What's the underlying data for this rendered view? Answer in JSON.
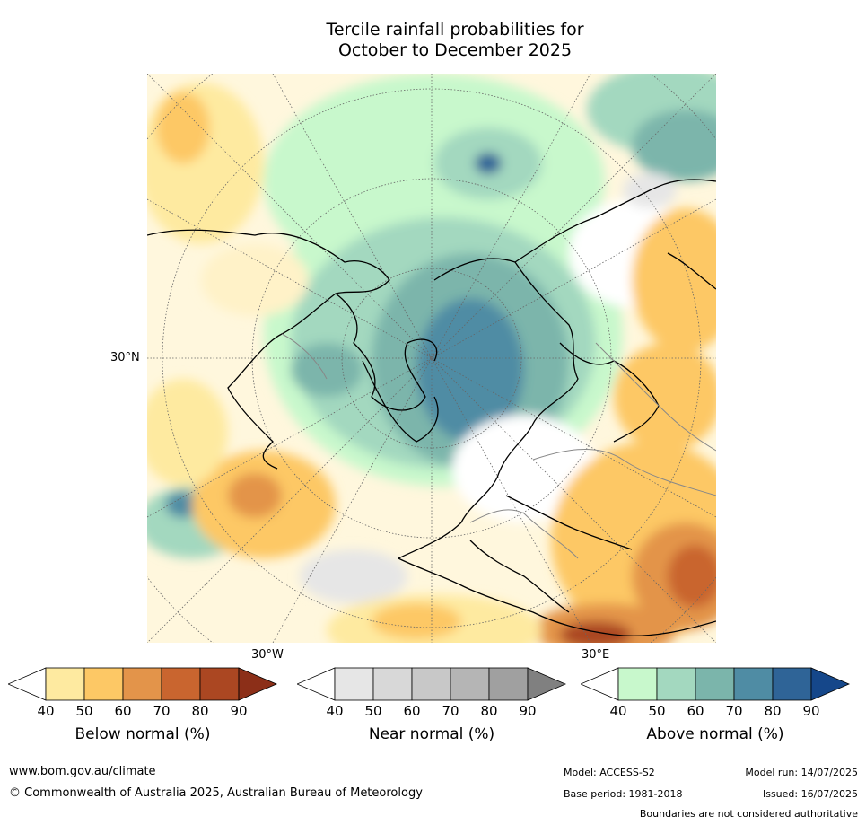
{
  "title_line1": "Tercile rainfall probabilities for",
  "title_line2": "October to December 2025",
  "map": {
    "lat_label": "30°N",
    "lon_label_w": "30°W",
    "lon_label_e": "30°E"
  },
  "colorbars": [
    {
      "label": "Below normal (%)",
      "ticks": [
        "40",
        "50",
        "60",
        "70",
        "80",
        "90"
      ],
      "colors": [
        "#ffffff",
        "#feeaa0",
        "#fdc865",
        "#e3944a",
        "#c9652f",
        "#ab4722",
        "#8c2f18"
      ]
    },
    {
      "label": "Near normal (%)",
      "ticks": [
        "40",
        "50",
        "60",
        "70",
        "80",
        "90"
      ],
      "colors": [
        "#ffffff",
        "#e6e6e6",
        "#d8d8d8",
        "#c8c8c8",
        "#b5b5b5",
        "#a0a0a0",
        "#808080"
      ]
    },
    {
      "label": "Above normal (%)",
      "ticks": [
        "40",
        "50",
        "60",
        "70",
        "80",
        "90"
      ],
      "colors": [
        "#ffffff",
        "#c8f8cc",
        "#a3d8bf",
        "#7bb5ab",
        "#4f8ca4",
        "#2f6497",
        "#15478a"
      ]
    }
  ],
  "footer": {
    "website": "www.bom.gov.au/climate",
    "copyright": "© Commonwealth of Australia 2025, Australian Bureau of Meteorology",
    "model": "Model: ACCESS-S2",
    "base_period": "Base period: 1981-2018",
    "model_run": "Model run: 14/07/2025",
    "issued": "Issued: 16/07/2025",
    "disclaimer": "Boundaries are not considered authoritative"
  }
}
